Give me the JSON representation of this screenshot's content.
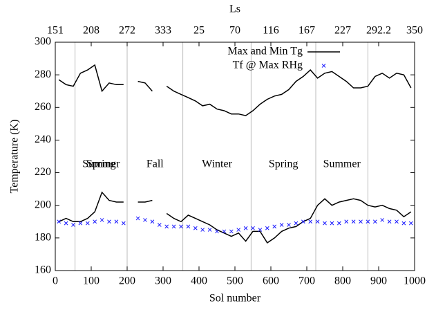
{
  "chart_data": {
    "type": "line",
    "x_label": "Sol number",
    "y_label": "Temperature (K)",
    "top_label": "Ls",
    "x": [
      10,
      30,
      50,
      70,
      90,
      110,
      130,
      150,
      170,
      190,
      210,
      230,
      250,
      270,
      290,
      310,
      330,
      350,
      370,
      390,
      410,
      430,
      450,
      470,
      490,
      510,
      530,
      550,
      570,
      590,
      610,
      630,
      650,
      670,
      690,
      710,
      730,
      750,
      770,
      790,
      810,
      830,
      850,
      870,
      890,
      910,
      930,
      950,
      970,
      990
    ],
    "series": [
      {
        "name": "Max and Min Tg",
        "color": "#000000",
        "kind": "line",
        "values": [
          277,
          274,
          273,
          281,
          283,
          286,
          270,
          275,
          274,
          274,
          null,
          276,
          275,
          270,
          null,
          273,
          270,
          268,
          266,
          264,
          261,
          262,
          259,
          258,
          256,
          256,
          255,
          258,
          262,
          265,
          267,
          268,
          271,
          276,
          279,
          283,
          278,
          281,
          282,
          279,
          276,
          272,
          272,
          273,
          279,
          281,
          278,
          281,
          280,
          272
        ]
      },
      {
        "color": "#000000",
        "kind": "line",
        "values": [
          190,
          192,
          190,
          190,
          192,
          196,
          208,
          203,
          202,
          202,
          null,
          202,
          202,
          203,
          null,
          195,
          192,
          190,
          194,
          192,
          190,
          188,
          185,
          183,
          181,
          183,
          178,
          184,
          184,
          177,
          180,
          184,
          186,
          187,
          190,
          192,
          200,
          204,
          200,
          202,
          203,
          204,
          203,
          200,
          199,
          200,
          198,
          197,
          193,
          196
        ]
      },
      {
        "name": "Tf @ Max RHg",
        "color": "#1a1aff",
        "kind": "scatter",
        "values": [
          190,
          189,
          188,
          189,
          189,
          190,
          191,
          190,
          190,
          189,
          null,
          192,
          191,
          190,
          188,
          187,
          187,
          187,
          187,
          186,
          185,
          185,
          184,
          184,
          184,
          185,
          186,
          186,
          185,
          186,
          187,
          188,
          188,
          189,
          190,
          190,
          190,
          189,
          189,
          189,
          190,
          190,
          190,
          190,
          190,
          191,
          190,
          190,
          189,
          189
        ]
      }
    ],
    "xlim": [
      0,
      1000
    ],
    "xticks": [
      0,
      100,
      200,
      300,
      400,
      500,
      600,
      700,
      800,
      900,
      1000
    ],
    "ylim": [
      160,
      300
    ],
    "yticks": [
      160,
      180,
      200,
      220,
      240,
      260,
      280,
      300
    ],
    "top_ticks": [
      {
        "value": 0,
        "label": "151"
      },
      {
        "value": 100,
        "label": "208"
      },
      {
        "value": 200,
        "label": "272"
      },
      {
        "value": 300,
        "label": "333"
      },
      {
        "value": 400,
        "label": "25"
      },
      {
        "value": 500,
        "label": "70"
      },
      {
        "value": 600,
        "label": "116"
      },
      {
        "value": 700,
        "label": "167"
      },
      {
        "value": 800,
        "label": "227"
      },
      {
        "value": 900,
        "label": "292.2"
      },
      {
        "value": 1000,
        "label": "350"
      }
    ],
    "season_boundaries": [
      55,
      200,
      355,
      545,
      725,
      870
    ],
    "seasons": [
      "Spring",
      "Summer",
      "Fall",
      "Winter",
      "Spring",
      "Summer"
    ],
    "legend": "upper right"
  }
}
